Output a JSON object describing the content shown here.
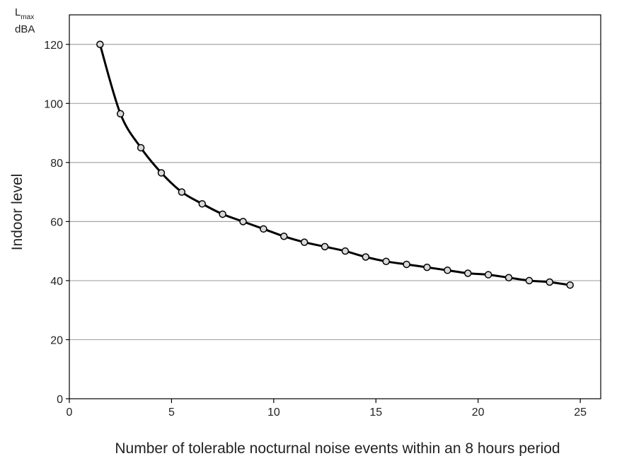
{
  "chart_data": {
    "type": "line",
    "xlabel": "Number of tolerable nocturnal noise events within an 8 hours period",
    "ylabel": "Indoor level",
    "unit_label": {
      "main": "L",
      "sub": "max",
      "line2": "dBA"
    },
    "xlim": [
      0,
      26
    ],
    "ylim": [
      0,
      130
    ],
    "x_ticks": [
      0,
      5,
      10,
      15,
      20,
      25
    ],
    "y_ticks": [
      0,
      20,
      40,
      60,
      80,
      100,
      120
    ],
    "grid": "horizontal",
    "legend": "none",
    "series": [
      {
        "x": [
          1.5,
          2.5,
          3.5,
          4.5,
          5.5,
          6.5,
          7.5,
          8.5,
          9.5,
          10.5,
          11.5,
          12.5,
          13.5,
          14.5,
          15.5,
          16.5,
          17.5,
          18.5,
          19.5,
          20.5,
          21.5,
          22.5,
          23.5,
          24.5
        ],
        "values": [
          120,
          96.5,
          85,
          76.5,
          70,
          66,
          62.5,
          60,
          57.5,
          55,
          53,
          51.5,
          50,
          48,
          46.5,
          45.5,
          44.5,
          43.5,
          42.5,
          42,
          41,
          40,
          39.5,
          38.5
        ]
      }
    ],
    "colors": {
      "line": "#000000",
      "marker_fill": "#d9d9d9",
      "grid": "#a6a6a6",
      "axes": "#000000"
    }
  }
}
